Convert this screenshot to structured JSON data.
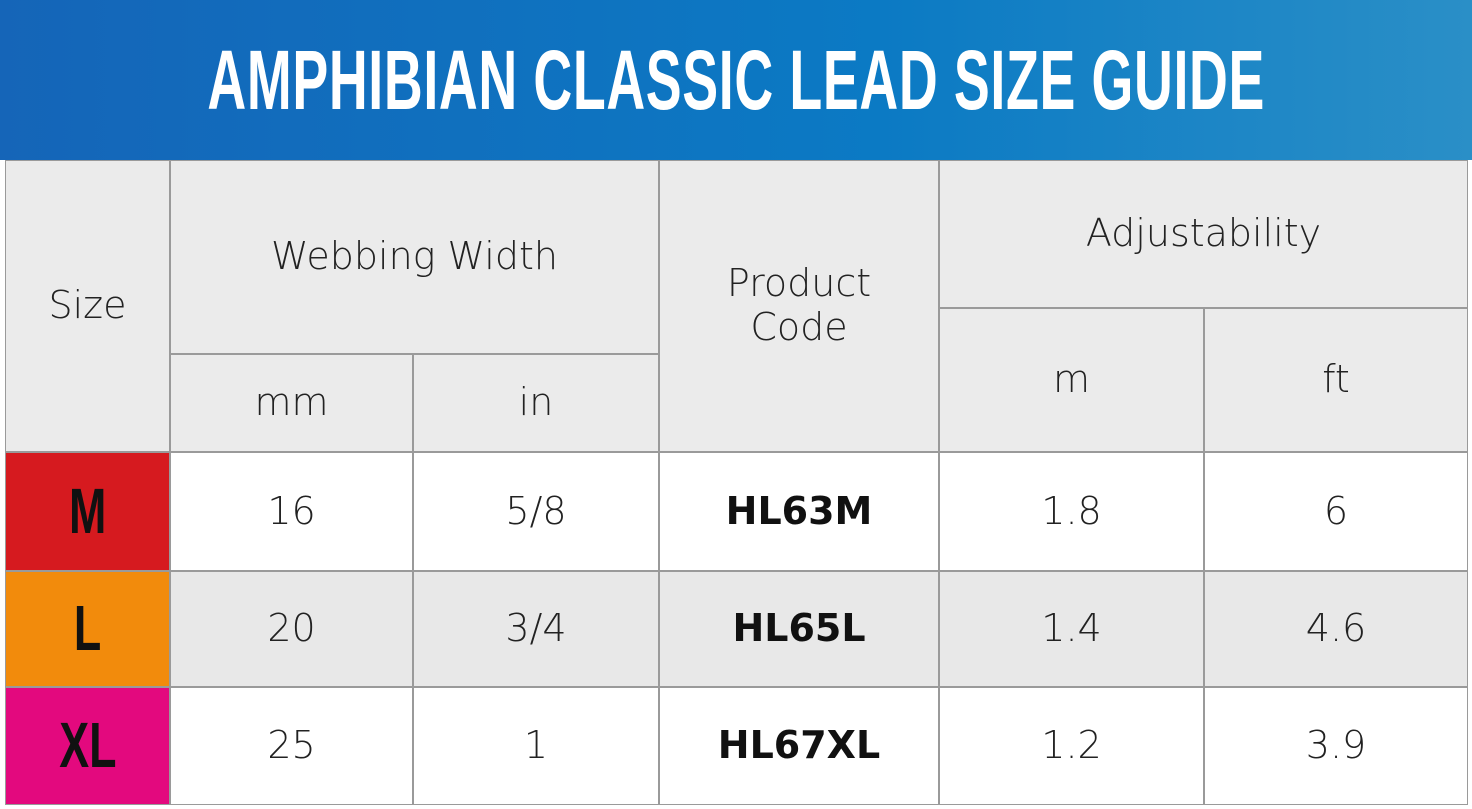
{
  "header": {
    "title": "AMPHIBIAN CLASSIC LEAD SIZE GUIDE"
  },
  "table": {
    "columns": {
      "size": "Size",
      "webbing_width": "Webbing Width",
      "mm": "mm",
      "in": "in",
      "product_code": "Product Code",
      "adjustability": "Adjustability",
      "m": "m",
      "ft": "ft"
    },
    "rows": [
      [
        "M",
        "16",
        "5/8",
        "HL63M",
        "1.8",
        "6"
      ],
      [
        "L",
        "20",
        "3/4",
        "HL65L",
        "1.4",
        "4.6"
      ],
      [
        "XL",
        "25",
        "1",
        "HL67XL",
        "1.2",
        "3.9"
      ]
    ]
  }
}
